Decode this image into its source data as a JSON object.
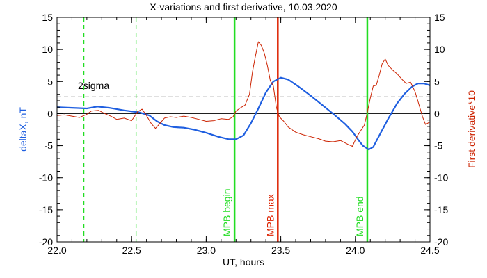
{
  "chart_data": {
    "type": "line",
    "title": "X-variations and first derivative, 10.03.2020",
    "xlabel": "UT, hours",
    "ylabel_left": "deltaX, nT",
    "ylabel_right": "First derivative*10",
    "xlim": [
      22.0,
      24.5
    ],
    "ylim": [
      -20,
      15
    ],
    "x_ticks": [
      "22.0",
      "22.5",
      "23.0",
      "23.5",
      "24.0",
      "24.5"
    ],
    "y_ticks_left": [
      "-20",
      "-15",
      "-10",
      "-5",
      "0",
      "5",
      "10",
      "15"
    ],
    "y_ticks_right": [
      "-20",
      "-15",
      "-10",
      "-5",
      "0",
      "5",
      "10",
      "15"
    ],
    "threshold": {
      "label": "2sigma",
      "value": 2.6
    },
    "colors": {
      "deltaX": "#1f5fe0",
      "derivative": "#cc2200",
      "green": "#22dd22",
      "max": "#dd2200"
    },
    "markers": [
      {
        "label": "MPB begin",
        "x": 23.19,
        "color": "#22dd22",
        "style": "solid"
      },
      {
        "label": "MPB max",
        "x": 23.48,
        "color": "#dd2200",
        "style": "solid"
      },
      {
        "label": "MPB end",
        "x": 24.08,
        "color": "#22dd22",
        "style": "solid"
      },
      {
        "x": 22.18,
        "color": "#22dd22",
        "style": "dashed"
      },
      {
        "x": 22.53,
        "color": "#22dd22",
        "style": "dashed"
      }
    ],
    "series": [
      {
        "key": "deltaX",
        "color": "#1f5fe0",
        "points": [
          [
            22.0,
            1.0
          ],
          [
            22.1,
            0.9
          ],
          [
            22.2,
            0.8
          ],
          [
            22.27,
            1.1
          ],
          [
            22.35,
            0.9
          ],
          [
            22.45,
            0.5
          ],
          [
            22.55,
            0.2
          ],
          [
            22.62,
            -0.3
          ],
          [
            22.67,
            -1.2
          ],
          [
            22.72,
            -1.8
          ],
          [
            22.78,
            -2.1
          ],
          [
            22.85,
            -2.2
          ],
          [
            22.92,
            -2.5
          ],
          [
            23.0,
            -3.0
          ],
          [
            23.08,
            -3.6
          ],
          [
            23.15,
            -4.0
          ],
          [
            23.2,
            -4.0
          ],
          [
            23.25,
            -3.4
          ],
          [
            23.3,
            -1.5
          ],
          [
            23.35,
            0.8
          ],
          [
            23.4,
            3.3
          ],
          [
            23.45,
            5.0
          ],
          [
            23.5,
            5.6
          ],
          [
            23.55,
            5.3
          ],
          [
            23.62,
            4.2
          ],
          [
            23.7,
            2.8
          ],
          [
            23.78,
            1.3
          ],
          [
            23.86,
            -0.2
          ],
          [
            23.93,
            -1.6
          ],
          [
            23.98,
            -2.8
          ],
          [
            24.02,
            -4.1
          ],
          [
            24.05,
            -5.0
          ],
          [
            24.09,
            -5.6
          ],
          [
            24.12,
            -5.2
          ],
          [
            24.17,
            -3.0
          ],
          [
            24.22,
            -0.8
          ],
          [
            24.28,
            1.6
          ],
          [
            24.33,
            3.1
          ],
          [
            24.38,
            4.2
          ],
          [
            24.42,
            4.7
          ],
          [
            24.46,
            4.7
          ],
          [
            24.5,
            4.4
          ]
        ]
      },
      {
        "key": "derivative",
        "color": "#cc2200",
        "points": [
          [
            22.0,
            -0.3
          ],
          [
            22.05,
            -0.2
          ],
          [
            22.1,
            -0.4
          ],
          [
            22.15,
            -0.6
          ],
          [
            22.2,
            -0.1
          ],
          [
            22.23,
            0.4
          ],
          [
            22.28,
            0.5
          ],
          [
            22.32,
            0.0
          ],
          [
            22.36,
            -0.4
          ],
          [
            22.4,
            -0.9
          ],
          [
            22.45,
            -0.7
          ],
          [
            22.5,
            -1.1
          ],
          [
            22.54,
            0.3
          ],
          [
            22.57,
            0.7
          ],
          [
            22.6,
            -0.3
          ],
          [
            22.63,
            -1.5
          ],
          [
            22.66,
            -2.3
          ],
          [
            22.68,
            -1.8
          ],
          [
            22.72,
            -0.7
          ],
          [
            22.76,
            -0.5
          ],
          [
            22.8,
            -0.6
          ],
          [
            22.85,
            -0.4
          ],
          [
            22.9,
            -0.6
          ],
          [
            22.95,
            -0.9
          ],
          [
            23.0,
            -1.2
          ],
          [
            23.05,
            -1.1
          ],
          [
            23.1,
            -0.8
          ],
          [
            23.15,
            -0.9
          ],
          [
            23.18,
            -0.5
          ],
          [
            23.2,
            0.4
          ],
          [
            23.23,
            0.9
          ],
          [
            23.26,
            1.3
          ],
          [
            23.29,
            3.0
          ],
          [
            23.31,
            6.5
          ],
          [
            23.33,
            9.0
          ],
          [
            23.35,
            11.2
          ],
          [
            23.37,
            10.6
          ],
          [
            23.39,
            9.4
          ],
          [
            23.41,
            7.5
          ],
          [
            23.43,
            5.1
          ],
          [
            23.45,
            4.3
          ],
          [
            23.47,
            1.0
          ],
          [
            23.49,
            -0.5
          ],
          [
            23.52,
            -1.2
          ],
          [
            23.55,
            -2.1
          ],
          [
            23.6,
            -2.9
          ],
          [
            23.65,
            -3.3
          ],
          [
            23.7,
            -3.6
          ],
          [
            23.75,
            -3.9
          ],
          [
            23.8,
            -4.3
          ],
          [
            23.85,
            -4.4
          ],
          [
            23.9,
            -4.2
          ],
          [
            23.95,
            -4.8
          ],
          [
            23.98,
            -5.1
          ],
          [
            24.01,
            -3.6
          ],
          [
            24.04,
            -2.5
          ],
          [
            24.06,
            -1.8
          ],
          [
            24.08,
            0.2
          ],
          [
            24.1,
            2.4
          ],
          [
            24.12,
            4.3
          ],
          [
            24.14,
            4.4
          ],
          [
            24.16,
            6.0
          ],
          [
            24.18,
            7.8
          ],
          [
            24.2,
            8.5
          ],
          [
            24.22,
            7.5
          ],
          [
            24.25,
            6.8
          ],
          [
            24.28,
            6.2
          ],
          [
            24.31,
            5.4
          ],
          [
            24.34,
            4.7
          ],
          [
            24.37,
            4.9
          ],
          [
            24.4,
            3.4
          ],
          [
            24.42,
            1.9
          ],
          [
            24.45,
            -0.5
          ],
          [
            24.47,
            -1.7
          ],
          [
            24.5,
            -1.3
          ]
        ]
      }
    ]
  }
}
